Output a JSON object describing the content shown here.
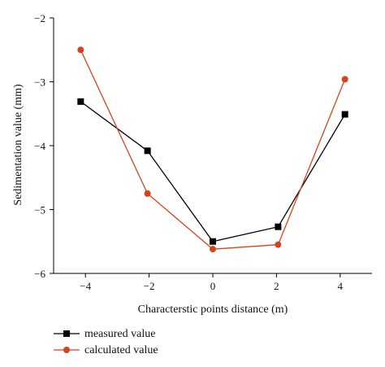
{
  "chart_data": {
    "type": "line",
    "title": "",
    "xlabel": "Characterstic points distance (m)",
    "ylabel": "Sedimentation value (mm)",
    "xlim": [
      -5,
      5
    ],
    "ylim": [
      -6,
      -2
    ],
    "xticks": [
      -4,
      -2,
      0,
      2,
      4
    ],
    "yticks": [
      -6,
      -5,
      -4,
      -3,
      -2
    ],
    "xtick_labels": [
      "−4",
      "−2",
      "0",
      "2",
      "4"
    ],
    "ytick_labels": [
      "−6",
      "−5",
      "−4",
      "−3",
      "−2"
    ],
    "grid": false,
    "legend_position": "bottom-left",
    "series": [
      {
        "name": "measured value",
        "marker": "square",
        "color": "#000000",
        "x": [
          -4.15,
          -2.05,
          0.0,
          2.05,
          4.15
        ],
        "y": [
          -3.31,
          -4.08,
          -5.5,
          -5.27,
          -3.51
        ]
      },
      {
        "name": "calculated value",
        "marker": "circle",
        "color": "#d4431f",
        "x": [
          -4.15,
          -2.05,
          0.0,
          2.05,
          4.15
        ],
        "y": [
          -2.5,
          -4.75,
          -5.62,
          -5.55,
          -2.96
        ]
      }
    ]
  }
}
